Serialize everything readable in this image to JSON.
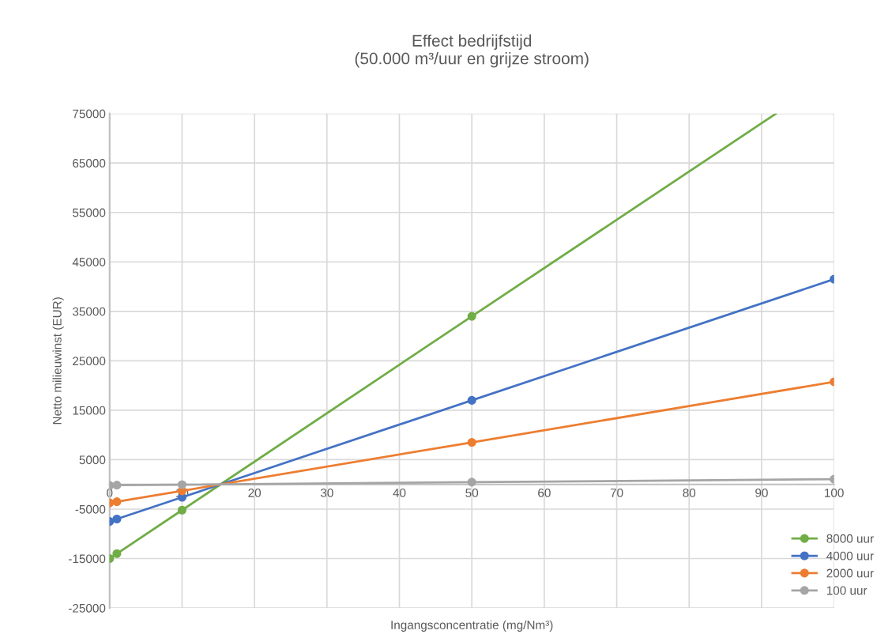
{
  "chart_data": {
    "type": "line",
    "title": "Effect bedrijfstijd\n(50.000 m³/uur en grijze stroom)",
    "xlabel": "Ingangsconcentratie (mg/Nm³)",
    "ylabel": "Netto milieuwinst (EUR)",
    "x": [
      0,
      1,
      10,
      50,
      100
    ],
    "series": [
      {
        "name": "8000 uur",
        "color": "#70ad47",
        "x": [
          0,
          1,
          10,
          50,
          92
        ],
        "values": [
          -15000,
          -14000,
          -5200,
          34000,
          75000
        ]
      },
      {
        "name": "4000 uur",
        "color": "#4472c4",
        "values": [
          -7500,
          -7000,
          -2600,
          17000,
          41500
        ]
      },
      {
        "name": "2000 uur",
        "color": "#ed7d31",
        "values": [
          -3750,
          -3500,
          -1300,
          8500,
          20750
        ]
      },
      {
        "name": "100 uur",
        "color": "#a5a5a5",
        "values": [
          -200,
          -150,
          -50,
          450,
          1050
        ]
      }
    ],
    "xlim": [
      0,
      100
    ],
    "xticks": [
      0,
      10,
      20,
      30,
      40,
      50,
      60,
      70,
      80,
      90,
      100
    ],
    "ylim": [
      -25000,
      75000
    ],
    "yticks": [
      -25000,
      -15000,
      -5000,
      5000,
      15000,
      25000,
      35000,
      45000,
      55000,
      65000,
      75000
    ],
    "grid": true,
    "legend": "bottom right",
    "marker": "circle",
    "line_style": "solid"
  }
}
